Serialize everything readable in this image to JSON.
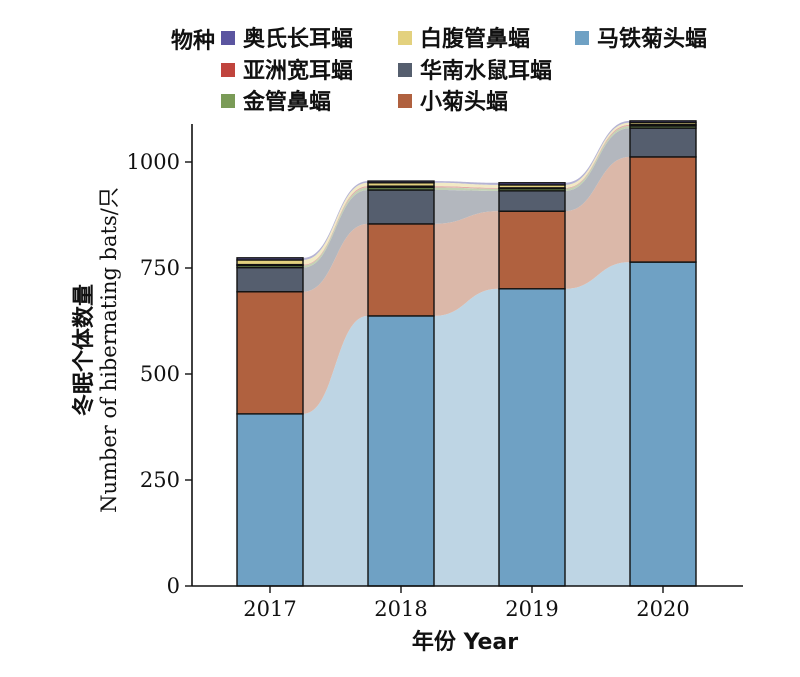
{
  "chart_data": {
    "type": "bar",
    "stacked": true,
    "flow_connectors": true,
    "categories": [
      "2017",
      "2018",
      "2019",
      "2020"
    ],
    "xlabel": "年份 Year",
    "ylabel_cn": "冬眠个体数量",
    "ylabel_en": "Number of hibernating bats/只",
    "ylim": [
      0,
      1090
    ],
    "yticks": [
      0,
      250,
      500,
      750,
      1000
    ],
    "legend_title": "物种",
    "legend_placement": "top",
    "series": [
      {
        "name": "马铁菊头蝠",
        "color": "#6fa1c4",
        "values": [
          406,
          637,
          701,
          764
        ]
      },
      {
        "name": "小菊头蝠",
        "color": "#b0613f",
        "values": [
          288,
          217,
          183,
          248
        ]
      },
      {
        "name": "华南水鼠耳蝠",
        "color": "#555e6e",
        "values": [
          57,
          80,
          48,
          68
        ]
      },
      {
        "name": "金管鼻蝠",
        "color": "#7a9b57",
        "values": [
          5,
          6,
          5,
          5
        ]
      },
      {
        "name": "亚洲宽耳蝠",
        "color": "#c0443d",
        "values": [
          2,
          3,
          2,
          3
        ]
      },
      {
        "name": "白腹管鼻蝠",
        "color": "#e3d17e",
        "values": [
          11,
          8,
          7,
          5
        ]
      },
      {
        "name": "奥氏长耳蝠",
        "color": "#5b55a0",
        "values": [
          5,
          4,
          5,
          4
        ]
      }
    ]
  },
  "legend": {
    "title": "物种",
    "items": [
      {
        "label": "奥氏长耳蝠",
        "color": "#5b55a0"
      },
      {
        "label": "白腹管鼻蝠",
        "color": "#e3d17e"
      },
      {
        "label": "马铁菊头蝠",
        "color": "#6fa1c4"
      },
      {
        "label": "亚洲宽耳蝠",
        "color": "#c0443d"
      },
      {
        "label": "华南水鼠耳蝠",
        "color": "#555e6e"
      },
      {
        "label": "金管鼻蝠",
        "color": "#7a9b57"
      },
      {
        "label": "小菊头蝠",
        "color": "#b0613f"
      }
    ]
  }
}
